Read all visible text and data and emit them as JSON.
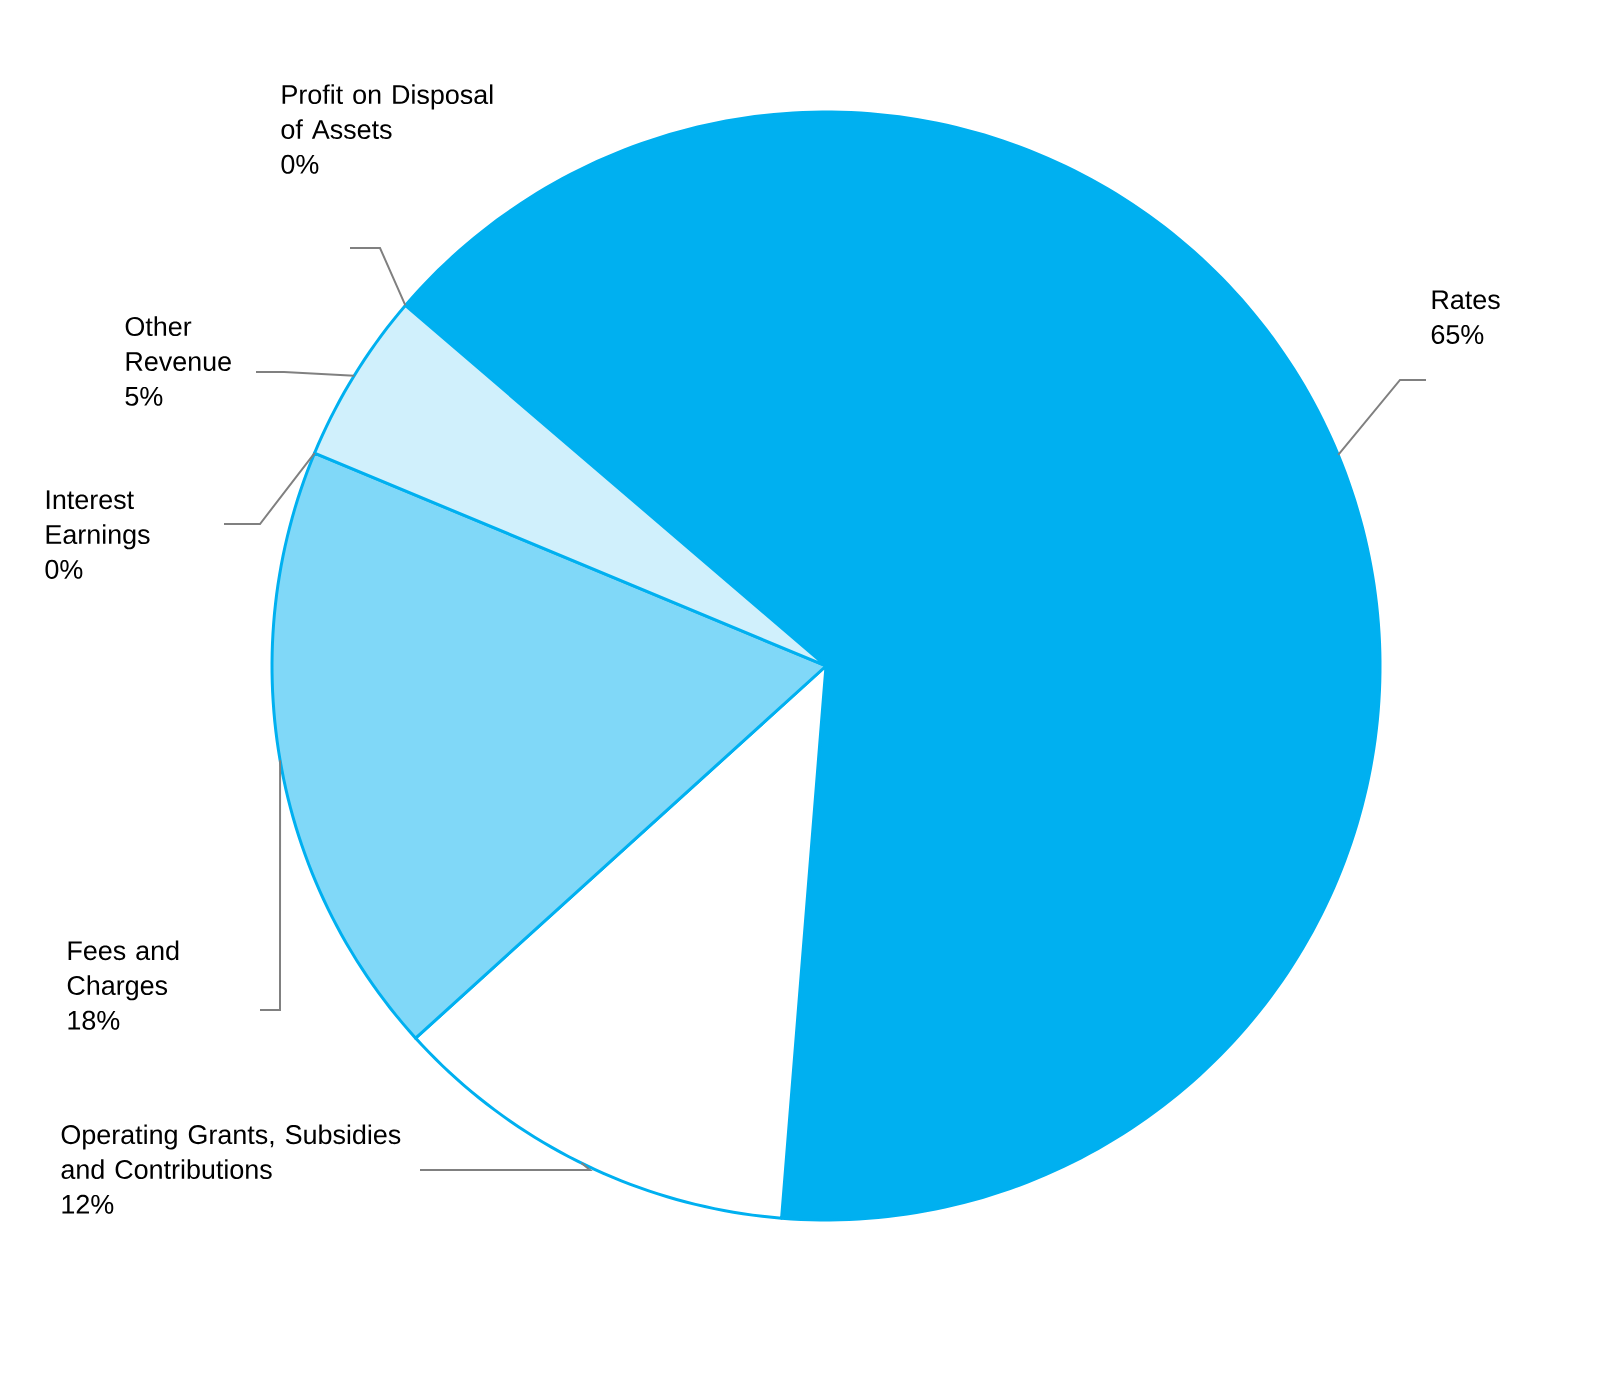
{
  "chart_data": {
    "type": "pie",
    "categories": [
      "Rates",
      "Operating Grants, Subsidies and Contributions",
      "Fees and Charges",
      "Interest Earnings",
      "Other Revenue",
      "Profit on Disposal of Assets"
    ],
    "values": [
      65,
      12,
      18,
      0,
      5,
      0
    ],
    "value_labels": [
      "65%",
      "12%",
      "18%",
      "0%",
      "5%",
      "0%"
    ],
    "colors": [
      "#00b0f0",
      "#ffffff",
      "#80d8f8",
      "#ffffff",
      "#d0f0fc",
      "#ffffff"
    ],
    "legend": false
  }
}
